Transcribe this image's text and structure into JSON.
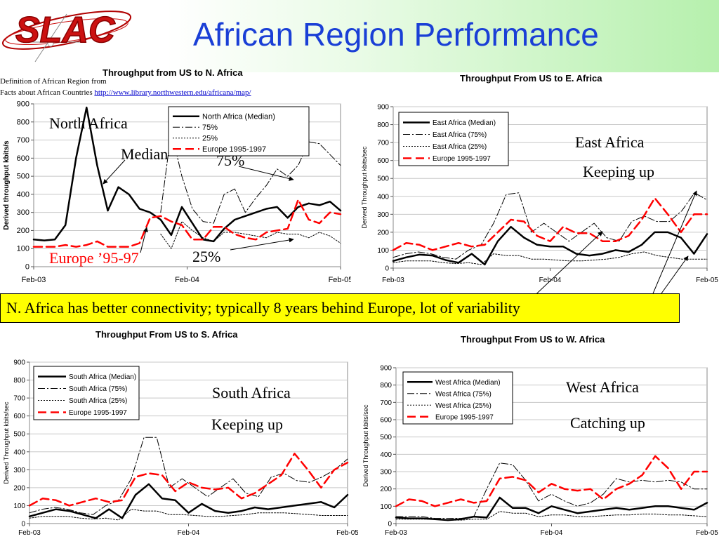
{
  "slide_title": "African Region Performance",
  "logo_text": "SLAC",
  "definition": {
    "line1": "Definition of African Region from",
    "line2_prefix": "Facts about African Countries ",
    "link": "http://www.library.northwestern.edu/africana/map/"
  },
  "banner": "N. Africa has better connectivity; typically 8 years behind Europe, lot of variability",
  "colors": {
    "title": "#1a3fd6",
    "europe": "#ff0000",
    "median": "#000000",
    "banner": "#ffff00"
  },
  "annotations": {
    "north_region": "North Africa",
    "median": "Median",
    "p75": "75%",
    "p25": "25%",
    "europe": "Europe ’95-97",
    "east_region": "East Africa",
    "east_status": "Keeping up",
    "south_region": "South Africa",
    "south_status": "Keeping up",
    "west_region": "West Africa",
    "west_status": "Catching up"
  },
  "chart_data": [
    {
      "id": "north",
      "type": "line",
      "title": "Throughput from US to N. Africa",
      "ylabel": "Derived throughput kbits/s",
      "xlabel": "",
      "ylim": [
        0,
        900
      ],
      "yticks": [
        "0",
        "100",
        "200",
        "300",
        "400",
        "500",
        "600",
        "700",
        "800",
        "900"
      ],
      "xticks": [
        "Feb-03",
        "Feb-04",
        "Feb-05"
      ],
      "x_range": [
        "Feb-03",
        "Feb-05"
      ],
      "grid": true,
      "legend_position": "top-center",
      "series": [
        {
          "name": "North Africa (Median)",
          "style": "solid",
          "color": "#000000",
          "width": 2.5,
          "values": [
            150,
            145,
            150,
            230,
            600,
            880,
            560,
            310,
            440,
            400,
            320,
            300,
            260,
            175,
            330,
            240,
            150,
            140,
            210,
            260,
            280,
            300,
            320,
            330,
            270,
            330,
            350,
            340,
            360,
            310
          ]
        },
        {
          "name": "75%",
          "style": "dashdot",
          "color": "#000000",
          "width": 1,
          "values": [
            null,
            null,
            null,
            null,
            null,
            null,
            null,
            null,
            null,
            null,
            null,
            null,
            300,
            750,
            500,
            320,
            250,
            240,
            400,
            430,
            300,
            380,
            450,
            540,
            500,
            560,
            690,
            680,
            620,
            560
          ]
        },
        {
          "name": "25%",
          "style": "dotted",
          "color": "#000000",
          "width": 1,
          "values": [
            null,
            null,
            null,
            null,
            null,
            null,
            null,
            null,
            null,
            null,
            null,
            null,
            180,
            100,
            250,
            200,
            160,
            140,
            190,
            190,
            180,
            170,
            160,
            190,
            180,
            180,
            160,
            190,
            170,
            130
          ]
        },
        {
          "name": "Europe 1995-1997",
          "style": "dashed",
          "color": "#ff0000",
          "width": 2.5,
          "values": [
            110,
            110,
            110,
            120,
            110,
            120,
            140,
            110,
            110,
            110,
            130,
            270,
            280,
            250,
            230,
            150,
            150,
            220,
            220,
            180,
            160,
            150,
            190,
            200,
            210,
            370,
            260,
            240,
            300,
            290
          ]
        }
      ]
    },
    {
      "id": "east",
      "type": "line",
      "title": "Throughput From US to E. Africa",
      "ylabel": "Derived Throughput kbits/sec",
      "xlabel": "",
      "ylim": [
        0,
        900
      ],
      "yticks": [
        "0",
        "100",
        "200",
        "300",
        "400",
        "500",
        "600",
        "700",
        "800",
        "900"
      ],
      "xticks": [
        "Feb-03",
        "Feb-04",
        "Feb-05"
      ],
      "x_range": [
        "Feb-03",
        "Feb-05"
      ],
      "grid": true,
      "legend_position": "top-left",
      "series": [
        {
          "name": "East Africa (Median)",
          "style": "solid",
          "color": "#000000",
          "width": 2.5,
          "values": [
            40,
            60,
            75,
            70,
            45,
            30,
            80,
            20,
            150,
            230,
            170,
            130,
            120,
            120,
            80,
            70,
            80,
            100,
            90,
            130,
            200,
            200,
            170,
            80,
            190
          ]
        },
        {
          "name": "East Africa (75%)",
          "style": "dashdot",
          "color": "#000000",
          "width": 1,
          "values": [
            60,
            80,
            90,
            80,
            60,
            50,
            100,
            130,
            250,
            410,
            420,
            200,
            250,
            200,
            150,
            200,
            250,
            170,
            150,
            260,
            290,
            260,
            260,
            320,
            420,
            380
          ]
        },
        {
          "name": "East Africa (25%)",
          "style": "dotted",
          "color": "#000000",
          "width": 1,
          "values": [
            30,
            40,
            40,
            40,
            30,
            25,
            30,
            20,
            80,
            70,
            70,
            50,
            50,
            45,
            40,
            40,
            45,
            50,
            60,
            80,
            90,
            70,
            60,
            50,
            50,
            50
          ]
        },
        {
          "name": "Europe 1995-1997",
          "style": "dashed",
          "color": "#ff0000",
          "width": 2.5,
          "values": [
            100,
            140,
            130,
            100,
            120,
            140,
            120,
            130,
            200,
            270,
            260,
            180,
            150,
            230,
            195,
            195,
            150,
            150,
            180,
            270,
            390,
            300,
            200,
            300,
            300
          ]
        }
      ]
    },
    {
      "id": "south",
      "type": "line",
      "title": "Throughput From US to S. Africa",
      "ylabel": "Derived Throughput kbits/sec",
      "xlabel": "",
      "ylim": [
        0,
        900
      ],
      "yticks": [
        "0",
        "100",
        "200",
        "300",
        "400",
        "500",
        "600",
        "700",
        "800",
        "900"
      ],
      "xticks": [
        "Feb-03",
        "Feb-04",
        "Feb-05"
      ],
      "x_range": [
        "Feb-03",
        "Feb-05"
      ],
      "grid": true,
      "legend_position": "top-left",
      "series": [
        {
          "name": "South Africa (Median)",
          "style": "solid",
          "color": "#000000",
          "width": 2.5,
          "values": [
            40,
            60,
            80,
            70,
            50,
            30,
            80,
            30,
            160,
            220,
            140,
            130,
            60,
            110,
            70,
            60,
            70,
            90,
            80,
            90,
            100,
            110,
            120,
            90,
            160
          ]
        },
        {
          "name": "South Africa (75%)",
          "style": "dashdot",
          "color": "#000000",
          "width": 1,
          "values": [
            60,
            80,
            90,
            80,
            60,
            50,
            100,
            130,
            250,
            480,
            480,
            200,
            250,
            200,
            150,
            200,
            250,
            170,
            150,
            260,
            280,
            240,
            230,
            260,
            300,
            360
          ]
        },
        {
          "name": "South Africa (25%)",
          "style": "dotted",
          "color": "#000000",
          "width": 1,
          "values": [
            30,
            40,
            40,
            40,
            30,
            25,
            30,
            20,
            80,
            70,
            70,
            50,
            50,
            45,
            40,
            40,
            45,
            50,
            60,
            60,
            60,
            55,
            50,
            45,
            45,
            45
          ]
        },
        {
          "name": "Europe 1995-1997",
          "style": "dashed",
          "color": "#ff0000",
          "width": 2.5,
          "values": [
            100,
            140,
            130,
            100,
            120,
            140,
            120,
            130,
            260,
            280,
            270,
            180,
            230,
            200,
            190,
            200,
            140,
            170,
            220,
            270,
            390,
            300,
            200,
            300,
            340
          ]
        }
      ]
    },
    {
      "id": "west",
      "type": "line",
      "title": "Throughput From US to W. Africa",
      "ylabel": "Derived Throughput kbits/sec",
      "xlabel": "",
      "ylim": [
        0,
        900
      ],
      "yticks": [
        "0",
        "100",
        "200",
        "300",
        "400",
        "500",
        "600",
        "700",
        "800",
        "900"
      ],
      "xticks": [
        "Feb-03",
        "Feb-04",
        "Feb-05"
      ],
      "x_range": [
        "Feb-03",
        "Feb-05"
      ],
      "grid": true,
      "legend_position": "top-left",
      "series": [
        {
          "name": "West Africa (Median)",
          "style": "solid",
          "color": "#000000",
          "width": 2.5,
          "values": [
            35,
            30,
            30,
            25,
            20,
            25,
            40,
            35,
            150,
            90,
            90,
            60,
            100,
            80,
            60,
            70,
            80,
            90,
            80,
            90,
            100,
            100,
            90,
            80,
            120
          ]
        },
        {
          "name": "West Africa (75%)",
          "style": "dashdot",
          "color": "#000000",
          "width": 1,
          "values": [
            40,
            40,
            40,
            30,
            30,
            30,
            40,
            200,
            350,
            340,
            250,
            130,
            170,
            130,
            100,
            120,
            170,
            260,
            240,
            250,
            240,
            250,
            240,
            200,
            200
          ]
        },
        {
          "name": "West Africa (25%)",
          "style": "dotted",
          "color": "#000000",
          "width": 1,
          "values": [
            25,
            25,
            25,
            25,
            20,
            20,
            25,
            25,
            70,
            60,
            60,
            40,
            50,
            50,
            40,
            40,
            45,
            50,
            50,
            55,
            55,
            50,
            50,
            45,
            40
          ]
        },
        {
          "name": "Europe 1995-1997",
          "style": "dashed",
          "color": "#ff0000",
          "width": 2.5,
          "values": [
            100,
            140,
            130,
            100,
            120,
            140,
            120,
            130,
            260,
            270,
            250,
            180,
            230,
            200,
            190,
            200,
            140,
            200,
            230,
            280,
            390,
            320,
            200,
            300,
            300
          ]
        }
      ]
    }
  ]
}
